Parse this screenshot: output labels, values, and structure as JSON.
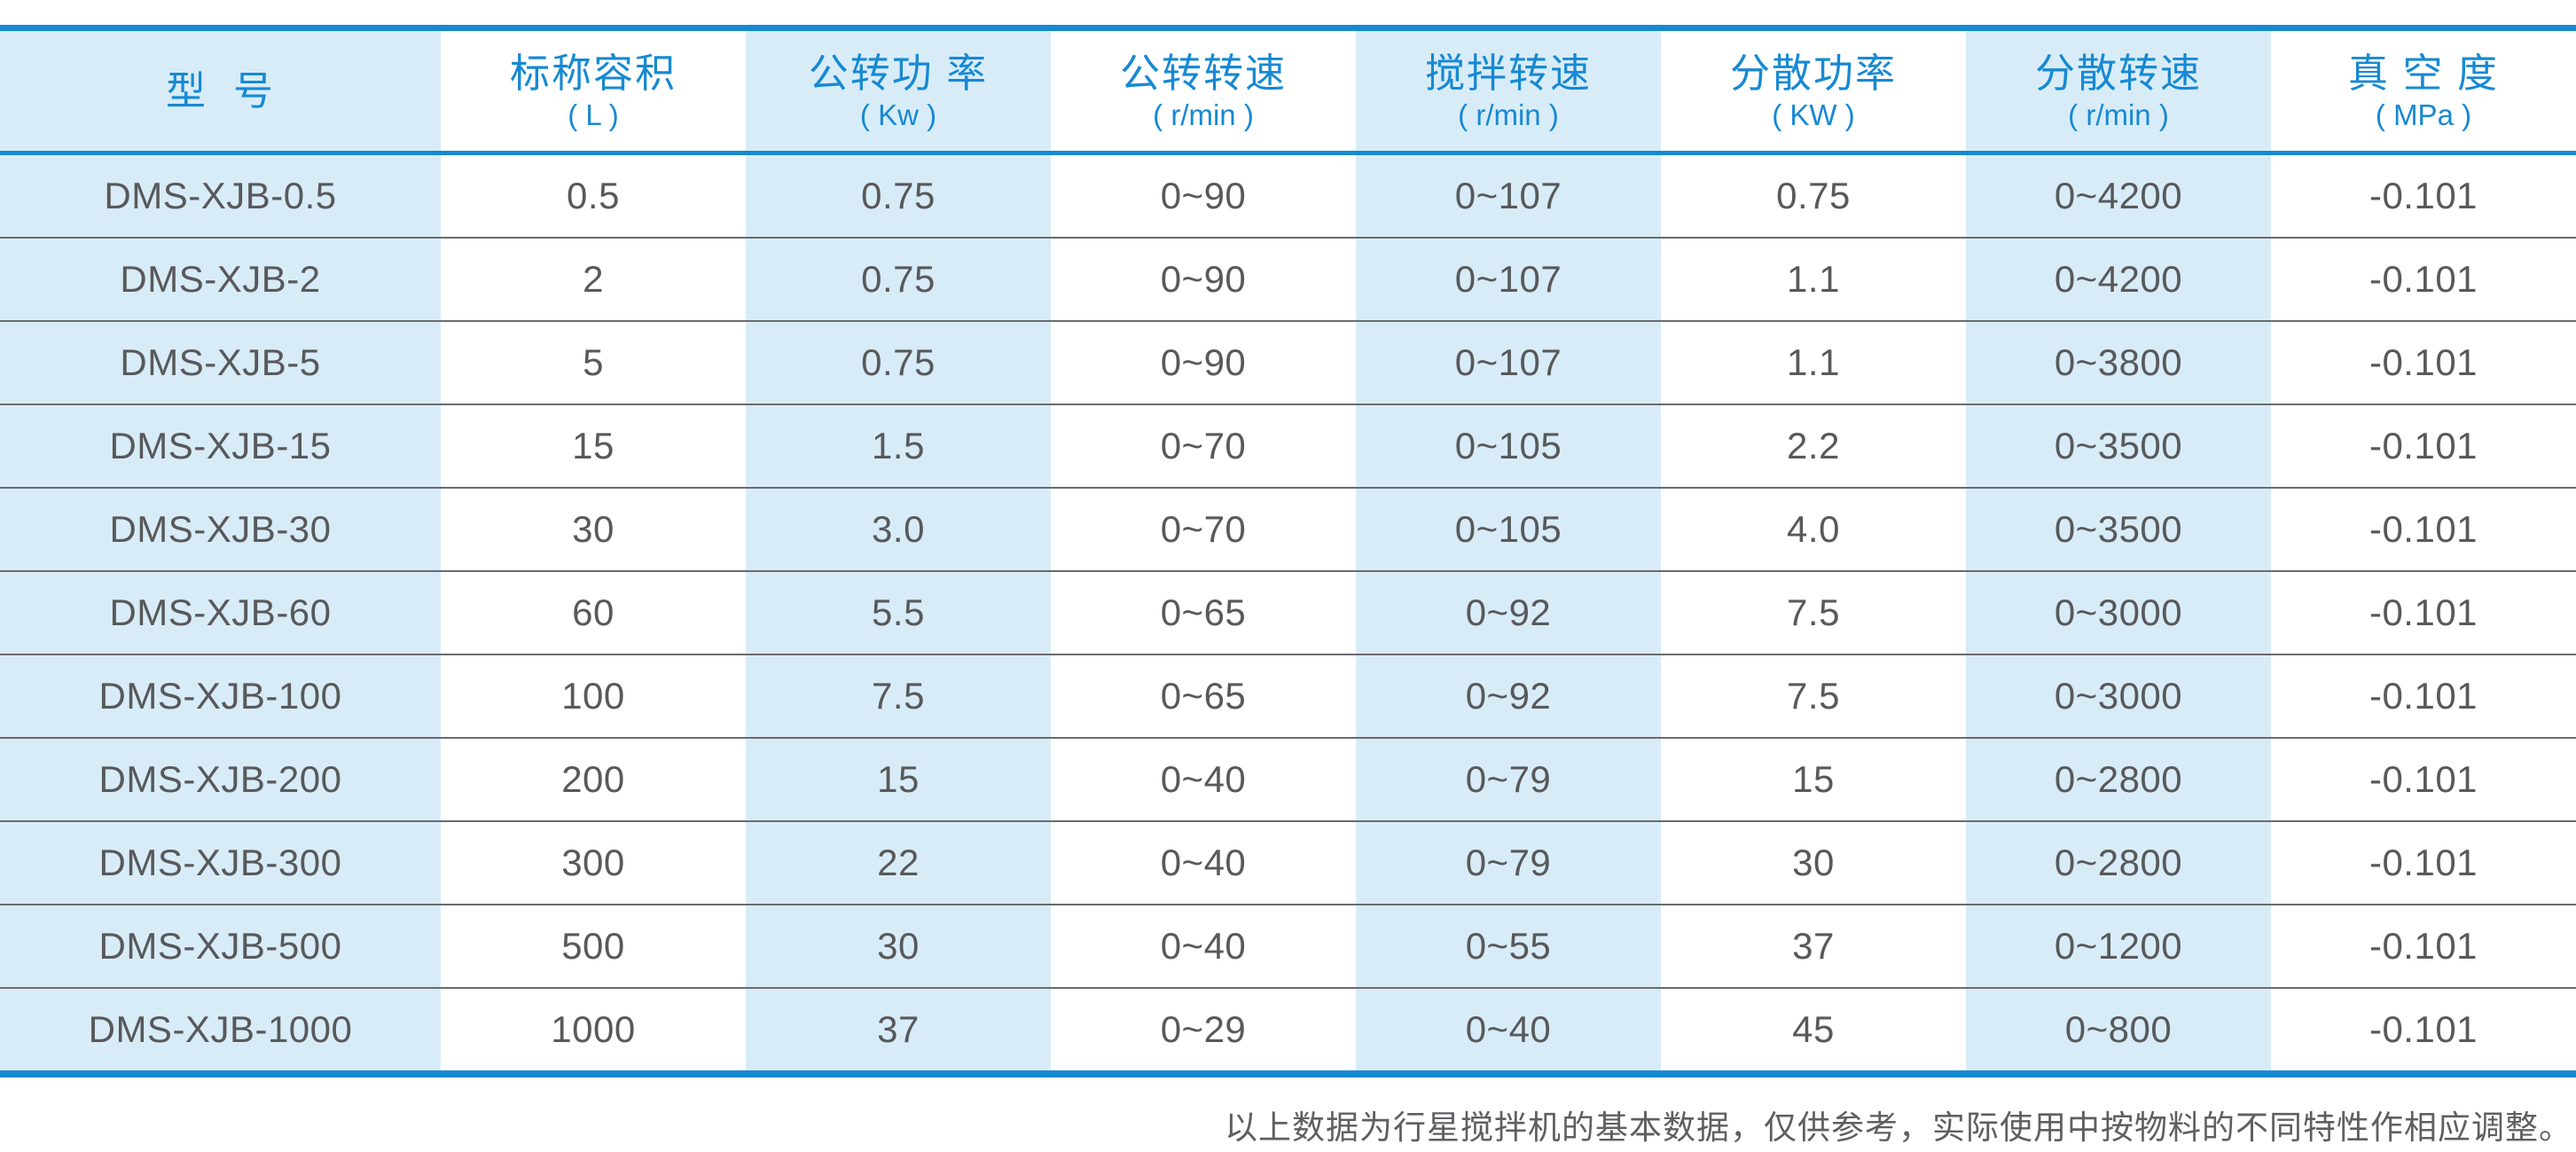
{
  "colors": {
    "accent": "#1789d2",
    "stripe": "#d8ecf8",
    "text": "#58595b",
    "separator": "#6a6b6e",
    "footnote": "#5e5f61"
  },
  "table": {
    "columns": [
      {
        "label": "型  号",
        "unit": ""
      },
      {
        "label": "标称容积",
        "unit": "( L )"
      },
      {
        "label": "公转功 率",
        "unit": "( Kw )"
      },
      {
        "label": "公转转速",
        "unit": "( r/min )"
      },
      {
        "label": "搅拌转速",
        "unit": "( r/min )"
      },
      {
        "label": "分散功率",
        "unit": "( KW )"
      },
      {
        "label": "分散转速",
        "unit": "( r/min )"
      },
      {
        "label": "真 空 度",
        "unit": "( MPa )"
      }
    ],
    "rows": [
      [
        "DMS-XJB-0.5",
        "0.5",
        "0.75",
        "0~90",
        "0~107",
        "0.75",
        "0~4200",
        "-0.101"
      ],
      [
        "DMS-XJB-2",
        "2",
        "0.75",
        "0~90",
        "0~107",
        "1.1",
        "0~4200",
        "-0.101"
      ],
      [
        "DMS-XJB-5",
        "5",
        "0.75",
        "0~90",
        "0~107",
        "1.1",
        "0~3800",
        "-0.101"
      ],
      [
        "DMS-XJB-15",
        "15",
        "1.5",
        "0~70",
        "0~105",
        "2.2",
        "0~3500",
        "-0.101"
      ],
      [
        "DMS-XJB-30",
        "30",
        "3.0",
        "0~70",
        "0~105",
        "4.0",
        "0~3500",
        "-0.101"
      ],
      [
        "DMS-XJB-60",
        "60",
        "5.5",
        "0~65",
        "0~92",
        "7.5",
        "0~3000",
        "-0.101"
      ],
      [
        "DMS-XJB-100",
        "100",
        "7.5",
        "0~65",
        "0~92",
        "7.5",
        "0~3000",
        "-0.101"
      ],
      [
        "DMS-XJB-200",
        "200",
        "15",
        "0~40",
        "0~79",
        "15",
        "0~2800",
        "-0.101"
      ],
      [
        "DMS-XJB-300",
        "300",
        "22",
        "0~40",
        "0~79",
        "30",
        "0~2800",
        "-0.101"
      ],
      [
        "DMS-XJB-500",
        "500",
        "30",
        "0~40",
        "0~55",
        "37",
        "0~1200",
        "-0.101"
      ],
      [
        "DMS-XJB-1000",
        "1000",
        "37",
        "0~29",
        "0~40",
        "45",
        "0~800",
        "-0.101"
      ]
    ]
  },
  "footnote": "以上数据为行星搅拌机的基本数据，仅供参考，实际使用中按物料的不同特性作相应调整。"
}
